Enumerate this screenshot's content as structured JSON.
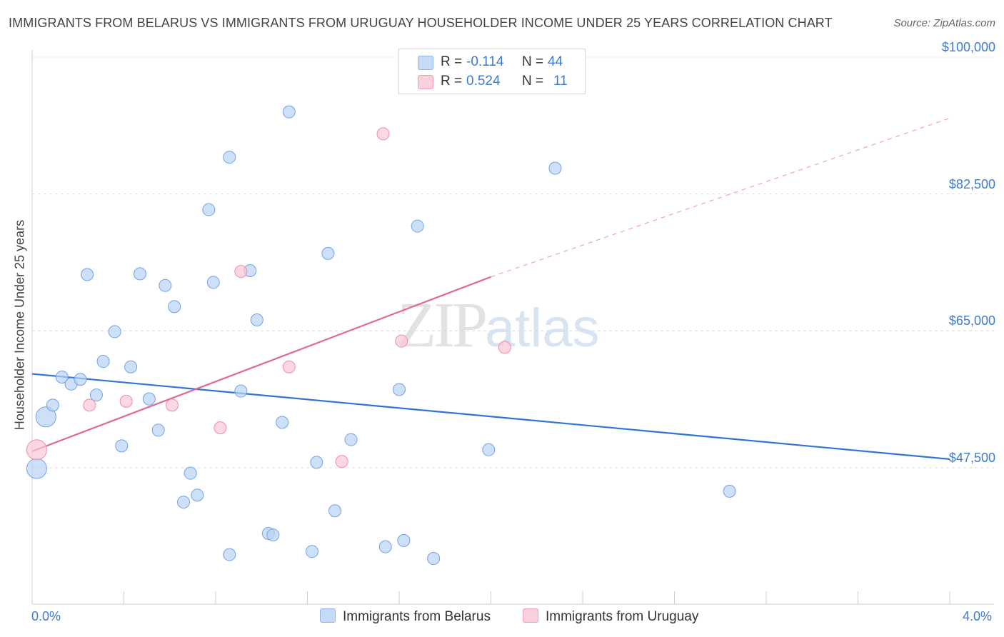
{
  "title": "IMMIGRANTS FROM BELARUS VS IMMIGRANTS FROM URUGUAY HOUSEHOLDER INCOME UNDER 25 YEARS CORRELATION CHART",
  "source": "Source: ZipAtlas.com",
  "watermark": {
    "zip": "ZIP",
    "atlas": "atlas"
  },
  "legend": {
    "rows": [
      {
        "r_label": "R =",
        "r_value": "-0.114",
        "n_label": "N =",
        "n_value": "44",
        "color": "#a9c9f2"
      },
      {
        "r_label": "R =",
        "r_value": "0.524",
        "n_label": "N =",
        "n_value": "11",
        "color": "#f8b7cb"
      }
    ]
  },
  "chart_data": {
    "type": "scatter",
    "title": "IMMIGRANTS FROM BELARUS VS IMMIGRANTS FROM URUGUAY HOUSEHOLDER INCOME UNDER 25 YEARS CORRELATION CHART",
    "xlabel": "",
    "ylabel": "Householder Income Under 25 years",
    "xlim": [
      0.0,
      4.0
    ],
    "ylim": [
      37500,
      101500
    ],
    "x_tick_labels": [
      "0.0%",
      "4.0%"
    ],
    "y_ticks": [
      47500,
      65000,
      82500,
      100000
    ],
    "y_tick_labels": [
      "$47,500",
      "$65,000",
      "$82,500",
      "$100,000"
    ],
    "series": [
      {
        "name": "Immigrants from Belarus",
        "color": "#6fa3e6",
        "fill": "#b9d3f4",
        "trend": {
          "x": [
            0.0,
            4.0
          ],
          "y": [
            59500,
            48600
          ]
        },
        "points": [
          {
            "x": 0.02,
            "y": 47400,
            "big": true
          },
          {
            "x": 0.06,
            "y": 54000,
            "big": true
          },
          {
            "x": 0.09,
            "y": 55500
          },
          {
            "x": 0.13,
            "y": 59100
          },
          {
            "x": 0.17,
            "y": 58200
          },
          {
            "x": 0.21,
            "y": 58800
          },
          {
            "x": 0.24,
            "y": 72200
          },
          {
            "x": 0.28,
            "y": 56800
          },
          {
            "x": 0.31,
            "y": 61100
          },
          {
            "x": 0.36,
            "y": 64900
          },
          {
            "x": 0.39,
            "y": 50300
          },
          {
            "x": 0.43,
            "y": 60400
          },
          {
            "x": 0.47,
            "y": 72300
          },
          {
            "x": 0.51,
            "y": 56300
          },
          {
            "x": 0.55,
            "y": 52300
          },
          {
            "x": 0.58,
            "y": 70800
          },
          {
            "x": 0.62,
            "y": 68100
          },
          {
            "x": 0.66,
            "y": 43100
          },
          {
            "x": 0.69,
            "y": 46800
          },
          {
            "x": 0.72,
            "y": 44000
          },
          {
            "x": 0.77,
            "y": 80500
          },
          {
            "x": 0.79,
            "y": 71200
          },
          {
            "x": 0.86,
            "y": 87200
          },
          {
            "x": 0.86,
            "y": 36400
          },
          {
            "x": 0.91,
            "y": 57300
          },
          {
            "x": 0.95,
            "y": 72700
          },
          {
            "x": 0.98,
            "y": 66400
          },
          {
            "x": 1.03,
            "y": 39100
          },
          {
            "x": 1.05,
            "y": 38900
          },
          {
            "x": 1.09,
            "y": 53300
          },
          {
            "x": 1.12,
            "y": 93000
          },
          {
            "x": 1.22,
            "y": 36800
          },
          {
            "x": 1.24,
            "y": 48200
          },
          {
            "x": 1.29,
            "y": 74900
          },
          {
            "x": 1.32,
            "y": 42000
          },
          {
            "x": 1.39,
            "y": 51100
          },
          {
            "x": 1.54,
            "y": 37400
          },
          {
            "x": 1.6,
            "y": 57500
          },
          {
            "x": 1.62,
            "y": 38200
          },
          {
            "x": 1.68,
            "y": 78400
          },
          {
            "x": 1.75,
            "y": 35900
          },
          {
            "x": 1.99,
            "y": 49800
          },
          {
            "x": 2.28,
            "y": 85800
          },
          {
            "x": 3.04,
            "y": 44500
          }
        ]
      },
      {
        "name": "Immigrants from Uruguay",
        "color": "#f08cab",
        "fill": "#fbc8d7",
        "trend": {
          "x": [
            0.0,
            2.0
          ],
          "y": [
            49600,
            71900
          ]
        },
        "trend_ext": {
          "x": [
            2.0,
            4.0
          ],
          "y": [
            71900,
            92200
          ]
        },
        "points": [
          {
            "x": 0.02,
            "y": 49800,
            "big": true
          },
          {
            "x": 0.25,
            "y": 55500
          },
          {
            "x": 0.41,
            "y": 56000
          },
          {
            "x": 0.61,
            "y": 55500
          },
          {
            "x": 0.82,
            "y": 52600
          },
          {
            "x": 0.91,
            "y": 72600
          },
          {
            "x": 1.12,
            "y": 60400
          },
          {
            "x": 1.35,
            "y": 48300
          },
          {
            "x": 1.53,
            "y": 90200
          },
          {
            "x": 1.61,
            "y": 63700
          },
          {
            "x": 2.06,
            "y": 62900
          }
        ]
      }
    ]
  }
}
